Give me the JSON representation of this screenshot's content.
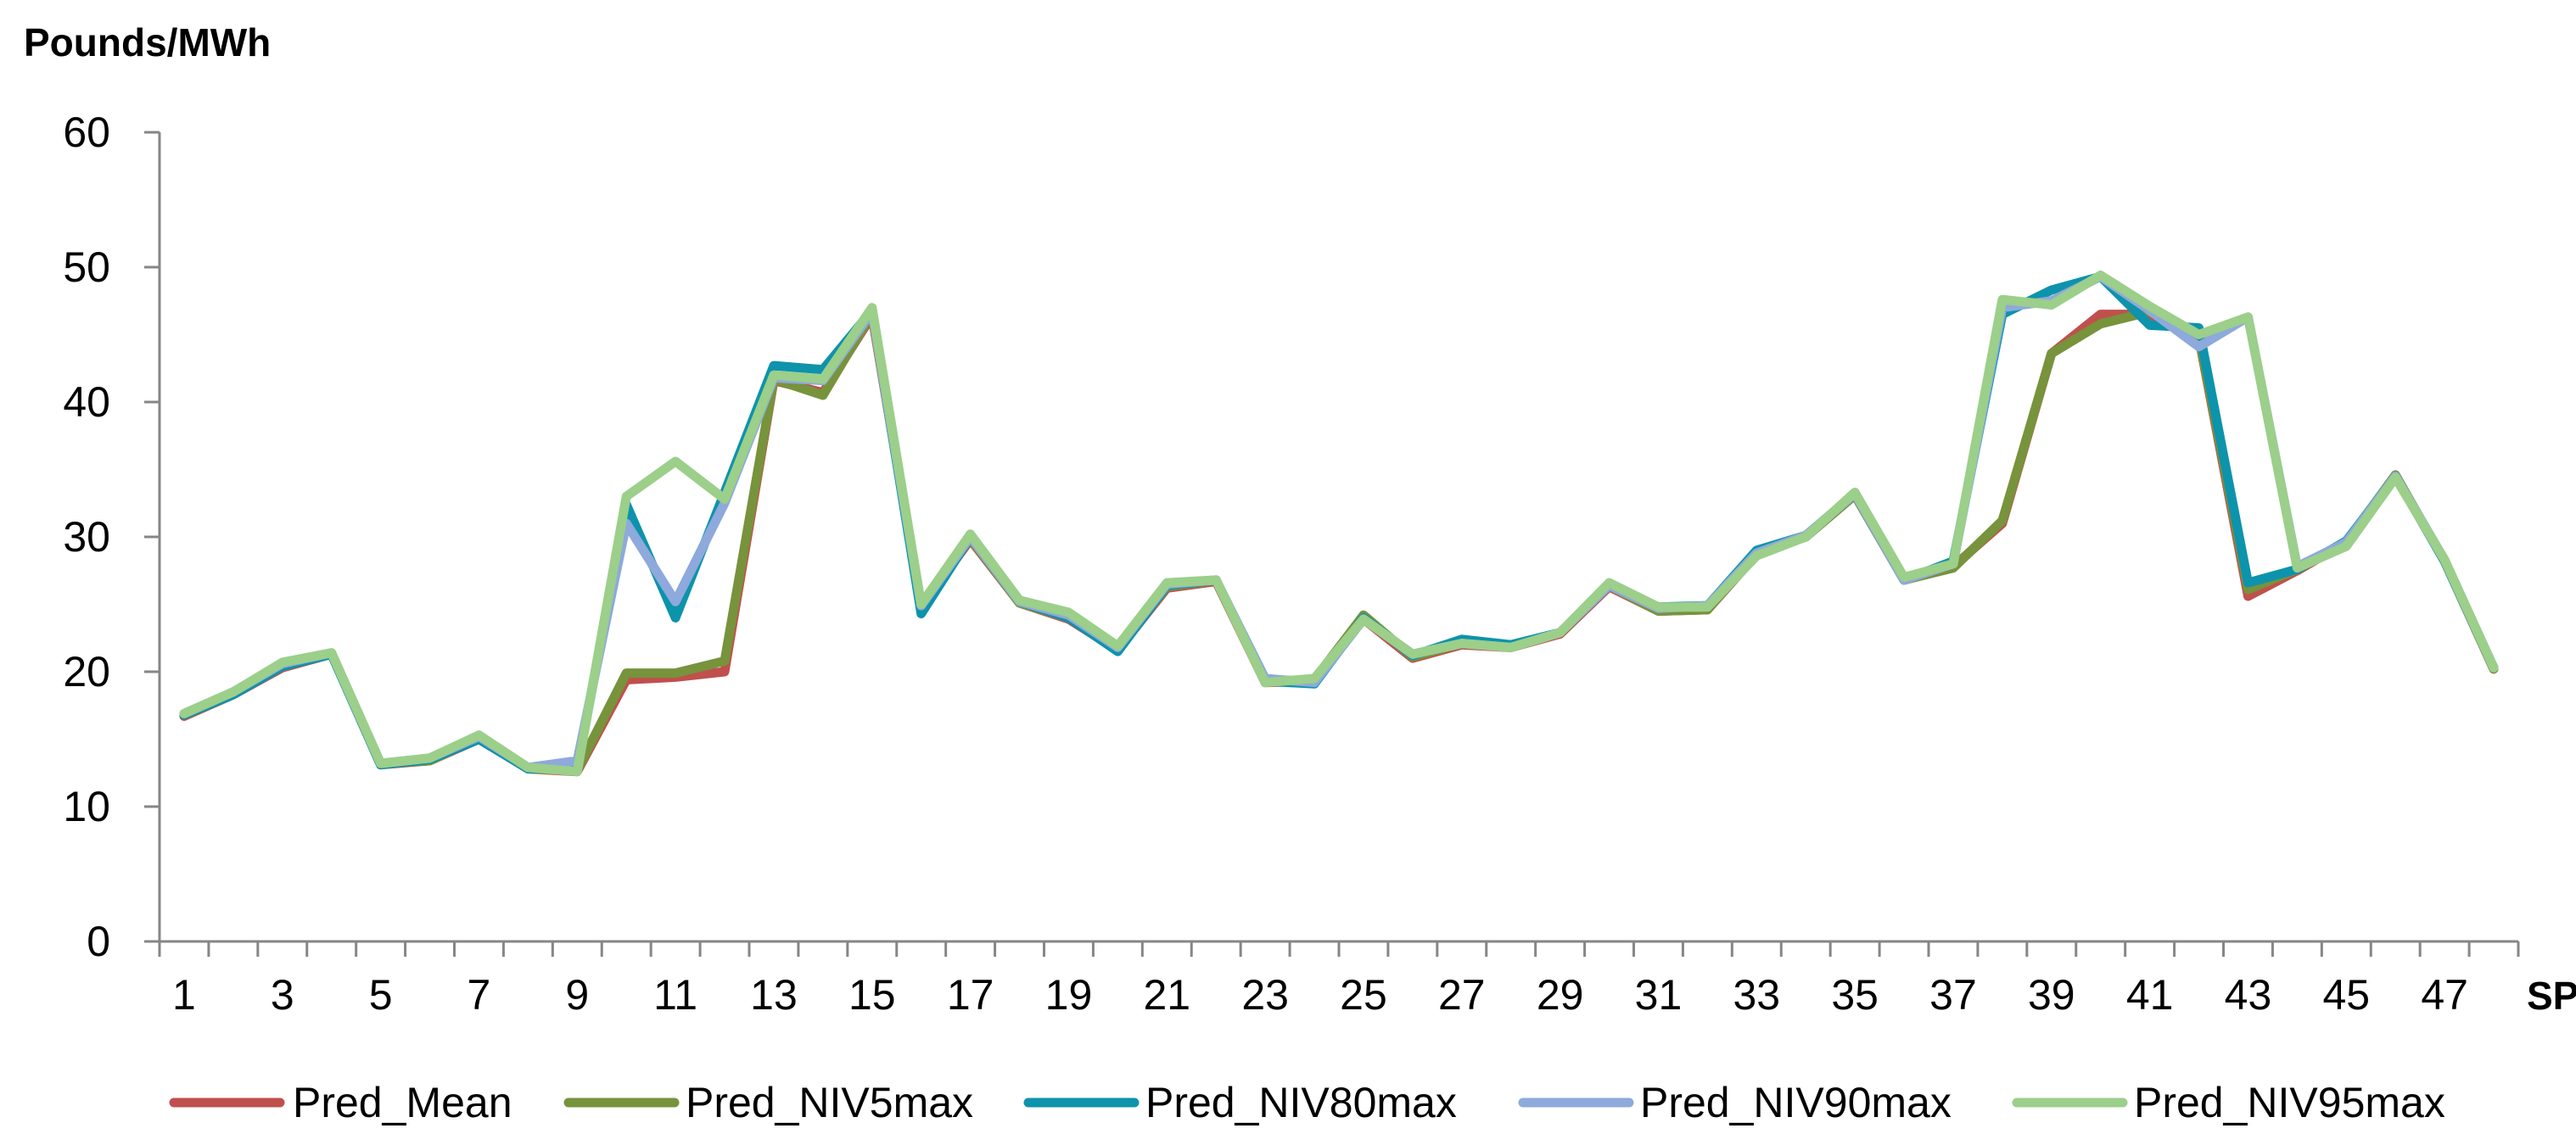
{
  "chart_data": {
    "type": "line",
    "title": "",
    "ylabel": "Pounds/MWh",
    "xlabel": "SP",
    "ylim": [
      0,
      60
    ],
    "yticks": [
      0,
      10,
      20,
      30,
      40,
      50,
      60
    ],
    "xlim": [
      1,
      48
    ],
    "xticks": [
      1,
      3,
      5,
      7,
      9,
      11,
      13,
      15,
      17,
      19,
      21,
      23,
      25,
      27,
      29,
      31,
      33,
      35,
      37,
      39,
      41,
      43,
      45,
      47
    ],
    "grid": false,
    "legend_position": "bottom",
    "x": [
      1,
      2,
      3,
      4,
      5,
      6,
      7,
      8,
      9,
      10,
      11,
      12,
      13,
      14,
      15,
      16,
      17,
      18,
      19,
      20,
      21,
      22,
      23,
      24,
      25,
      26,
      27,
      28,
      29,
      30,
      31,
      32,
      33,
      34,
      35,
      36,
      37,
      38,
      39,
      40,
      41,
      42,
      43,
      44,
      45,
      46,
      47,
      48
    ],
    "series": [
      {
        "name": "Pred_Mean",
        "color": "#c0504d",
        "values": [
          16.7,
          18.3,
          20.3,
          21.3,
          13.1,
          13.4,
          15.0,
          12.8,
          12.6,
          19.4,
          19.6,
          20.0,
          41.6,
          40.7,
          46.4,
          24.8,
          29.8,
          25.1,
          23.9,
          21.6,
          26.2,
          26.7,
          19.2,
          19.3,
          23.9,
          21.0,
          22.0,
          21.8,
          22.8,
          26.3,
          24.5,
          24.6,
          28.7,
          30.0,
          33.1,
          26.8,
          27.8,
          31.0,
          43.6,
          46.5,
          46.5,
          44.8,
          25.6,
          27.5,
          29.6,
          34.5,
          28.2,
          20.2
        ]
      },
      {
        "name": "Pred_NIV5max",
        "color": "#77933c",
        "values": [
          16.8,
          18.4,
          20.4,
          21.3,
          13.2,
          13.4,
          15.1,
          12.8,
          12.7,
          19.9,
          19.9,
          20.8,
          41.7,
          40.5,
          46.6,
          24.9,
          29.9,
          25.1,
          24.0,
          21.7,
          26.3,
          26.8,
          19.3,
          19.4,
          24.2,
          21.1,
          22.1,
          21.8,
          22.9,
          26.4,
          24.5,
          24.6,
          28.8,
          30.0,
          33.1,
          26.8,
          27.7,
          31.2,
          43.6,
          45.8,
          46.7,
          44.9,
          26.1,
          27.6,
          29.6,
          34.6,
          28.2,
          20.2
        ]
      },
      {
        "name": "Pred_NIV80max",
        "color": "#0d93ab",
        "values": [
          16.8,
          18.3,
          20.4,
          21.3,
          13.1,
          13.5,
          15.0,
          12.8,
          12.8,
          32.4,
          24.0,
          33.3,
          42.7,
          42.4,
          46.8,
          24.3,
          30.0,
          25.2,
          24.0,
          21.5,
          26.4,
          26.8,
          19.3,
          19.1,
          24.0,
          21.2,
          22.4,
          22.0,
          22.9,
          26.4,
          24.8,
          24.9,
          29.0,
          30.1,
          33.2,
          26.8,
          28.2,
          46.5,
          48.3,
          49.3,
          45.7,
          45.5,
          26.6,
          27.6,
          29.7,
          34.5,
          28.2,
          20.3
        ]
      },
      {
        "name": "Pred_NIV90max",
        "color": "#8ea9db",
        "values": [
          16.9,
          18.5,
          20.6,
          21.4,
          13.2,
          13.6,
          15.2,
          12.9,
          13.4,
          31.0,
          25.2,
          32.5,
          41.8,
          41.6,
          46.7,
          24.9,
          30.0,
          25.2,
          24.2,
          21.8,
          26.5,
          26.8,
          19.5,
          19.2,
          23.9,
          21.3,
          22.1,
          21.8,
          22.9,
          26.4,
          24.7,
          24.9,
          28.8,
          30.1,
          33.2,
          26.8,
          28.0,
          47.0,
          47.5,
          49.3,
          46.8,
          44.1,
          46.3,
          27.8,
          29.6,
          34.5,
          28.3,
          20.3
        ]
      },
      {
        "name": "Pred_NIV95max",
        "color": "#9bcf8a",
        "values": [
          16.9,
          18.5,
          20.7,
          21.4,
          13.2,
          13.6,
          15.3,
          12.9,
          12.6,
          33.0,
          35.6,
          32.8,
          42.0,
          41.7,
          47.0,
          25.0,
          30.2,
          25.3,
          24.4,
          21.9,
          26.6,
          26.8,
          19.2,
          19.5,
          23.9,
          21.3,
          22.1,
          21.8,
          22.9,
          26.6,
          24.8,
          24.8,
          28.6,
          30.0,
          33.3,
          27.0,
          28.0,
          47.6,
          47.2,
          49.4,
          47.1,
          45.0,
          46.3,
          27.7,
          29.3,
          34.4,
          28.3,
          20.3
        ]
      }
    ]
  }
}
